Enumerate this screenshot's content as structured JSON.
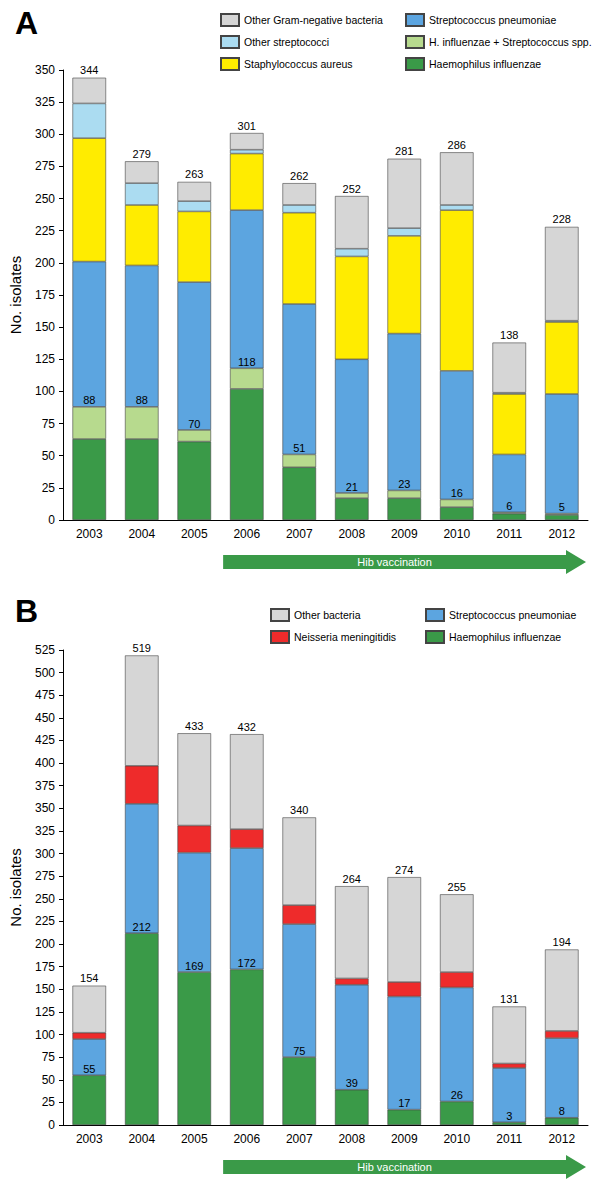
{
  "chart_data": [
    {
      "type": "bar",
      "title": "A",
      "ylabel": "No. isolates",
      "categories": [
        "2003",
        "2004",
        "2005",
        "2006",
        "2007",
        "2008",
        "2009",
        "2010",
        "2011",
        "2012"
      ],
      "series": [
        {
          "name": "Haemophilus influenzae",
          "color": "#3a9a48",
          "values": [
            63,
            63,
            61,
            102,
            41,
            17,
            17,
            10,
            5,
            4
          ]
        },
        {
          "name": "H. influenzae + Streptococcus spp.",
          "color": "#b7da8e",
          "values": [
            25,
            25,
            9,
            16,
            10,
            4,
            6,
            6,
            1,
            1
          ]
        },
        {
          "name": "Streptococcus pneumoniae",
          "color": "#5ca5e0",
          "values": [
            113,
            110,
            115,
            123,
            117,
            104,
            122,
            100,
            45,
            93
          ]
        },
        {
          "name": "Staphylococcus aureus",
          "color": "#ffec00",
          "values": [
            96,
            47,
            55,
            44,
            71,
            80,
            76,
            125,
            47,
            56
          ]
        },
        {
          "name": "Other streptococci",
          "color": "#abdcf1",
          "values": [
            27,
            17,
            8,
            3,
            6,
            6,
            6,
            4,
            1,
            1
          ]
        },
        {
          "name": "Other Gram-negative bacteria",
          "color": "#d6d6d6",
          "values": [
            20,
            17,
            15,
            13,
            17,
            41,
            54,
            41,
            39,
            73
          ]
        }
      ],
      "totals": [
        344,
        279,
        263,
        301,
        262,
        252,
        281,
        286,
        138,
        228
      ],
      "h_influenzae_totals": [
        88,
        88,
        70,
        118,
        51,
        21,
        23,
        16,
        6,
        5
      ],
      "annotation": {
        "text": "Hib vaccination",
        "from": "2006",
        "to": "2012",
        "color": "#3a9a48"
      },
      "ylim": [
        0,
        350
      ],
      "yticks": [
        0,
        25,
        50,
        75,
        100,
        125,
        150,
        175,
        200,
        225,
        250,
        275,
        300,
        325,
        350
      ],
      "stacked": true,
      "grid": false,
      "legend": "top-right"
    },
    {
      "type": "bar",
      "title": "B",
      "ylabel": "No. isolates",
      "categories": [
        "2003",
        "2004",
        "2005",
        "2006",
        "2007",
        "2008",
        "2009",
        "2010",
        "2011",
        "2012"
      ],
      "series": [
        {
          "name": "Haemophilus influenzae",
          "color": "#3a9a48",
          "values": [
            55,
            212,
            169,
            172,
            75,
            39,
            17,
            26,
            3,
            8
          ],
          "data_labels": true
        },
        {
          "name": "Streptococcus pneumoniae",
          "color": "#5ca5e0",
          "values": [
            40,
            143,
            132,
            134,
            147,
            116,
            125,
            126,
            60,
            88
          ]
        },
        {
          "name": "Neisseria meningitidis",
          "color": "#ee2b2b",
          "values": [
            7,
            42,
            30,
            21,
            21,
            7,
            16,
            17,
            5,
            8
          ]
        },
        {
          "name": "Other bacteria",
          "color": "#d6d6d6",
          "values": [
            52,
            122,
            102,
            105,
            97,
            102,
            116,
            86,
            63,
            90
          ]
        }
      ],
      "totals": [
        154,
        519,
        433,
        432,
        340,
        264,
        274,
        255,
        131,
        194
      ],
      "annotation": {
        "text": "Hib vaccination",
        "from": "2006",
        "to": "2012",
        "color": "#3a9a48"
      },
      "ylim": [
        0,
        525
      ],
      "yticks": [
        0,
        25,
        50,
        75,
        100,
        125,
        150,
        175,
        200,
        225,
        250,
        275,
        300,
        325,
        350,
        375,
        400,
        425,
        450,
        475,
        500,
        525
      ],
      "stacked": true,
      "grid": false,
      "legend": "top-right"
    }
  ]
}
